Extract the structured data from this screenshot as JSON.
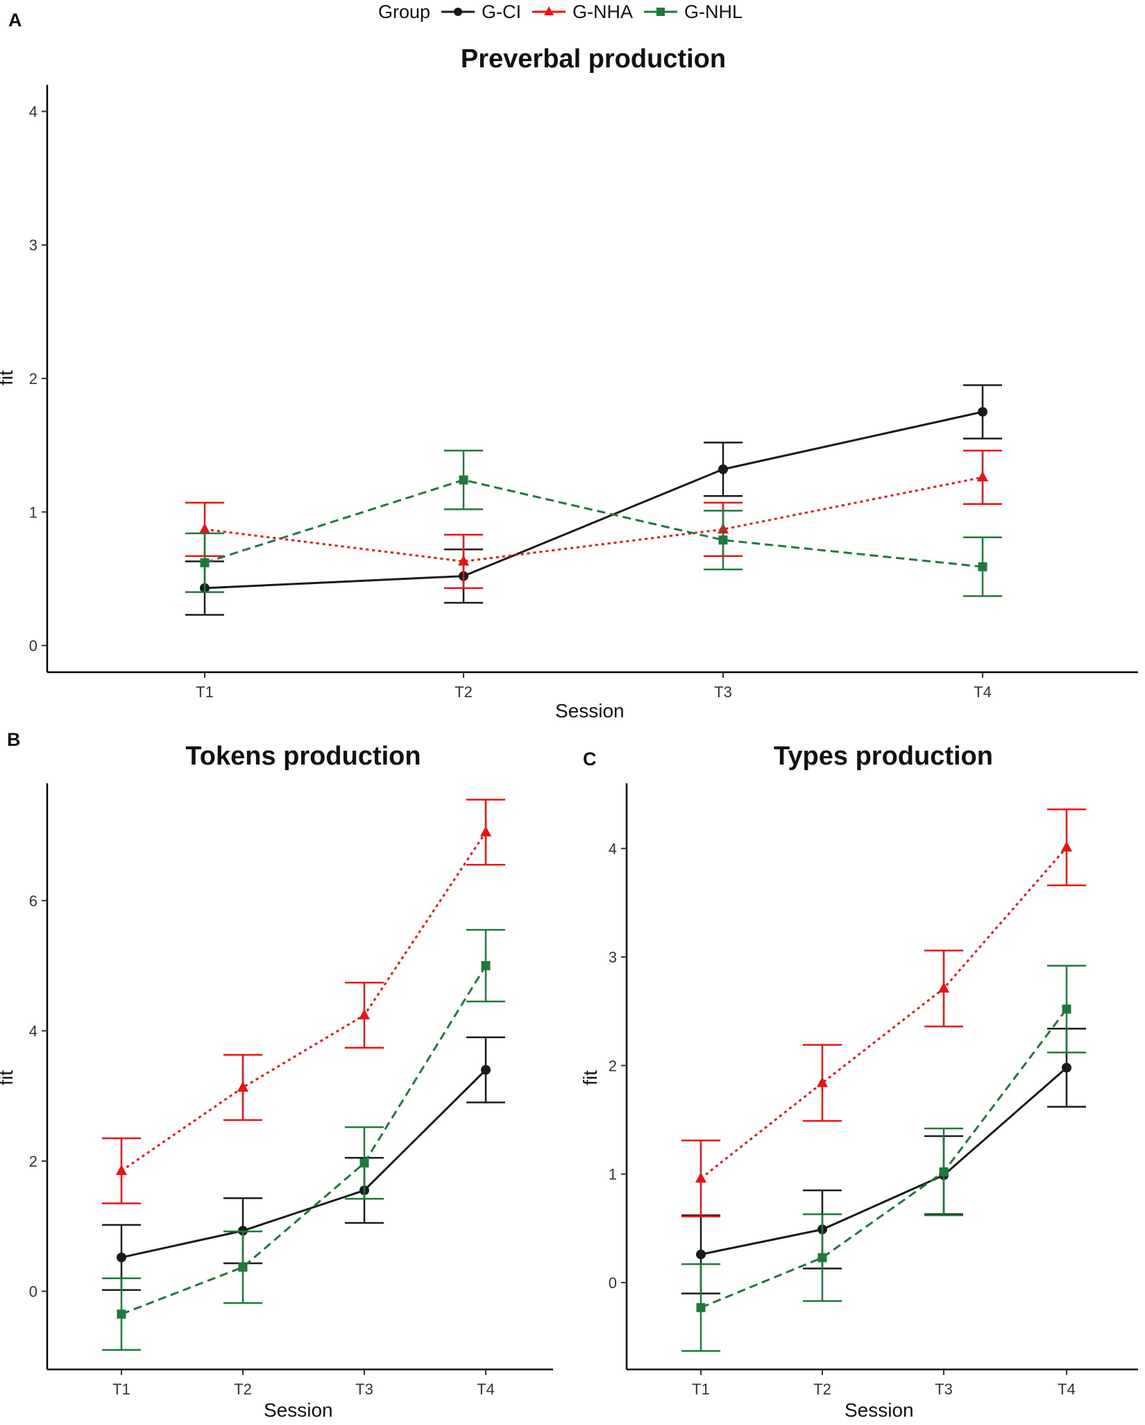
{
  "legend": {
    "title": "Group",
    "items": [
      {
        "name": "G-CI",
        "color": "#1a1a1a",
        "shape": "circle",
        "dash": "solid"
      },
      {
        "name": "G-NHA",
        "color": "#ee1111",
        "shape": "triangle",
        "dash": "dotted"
      },
      {
        "name": "G-NHL",
        "color": "#1e7a3a",
        "shape": "square",
        "dash": "dashed"
      }
    ]
  },
  "chart_data": [
    {
      "panel": "A",
      "type": "line",
      "title": "Preverbal production",
      "xlabel": "Session",
      "ylabel": "fit",
      "categories": [
        "T1",
        "T2",
        "T3",
        "T4"
      ],
      "ylim": [
        -0.2,
        4.2
      ],
      "yticks": [
        0,
        1,
        2,
        3,
        4
      ],
      "series": [
        {
          "name": "G-CI",
          "values": [
            0.43,
            0.52,
            1.32,
            1.75
          ],
          "lower": [
            0.23,
            0.32,
            1.12,
            1.55
          ],
          "upper": [
            0.63,
            0.72,
            1.52,
            1.95
          ]
        },
        {
          "name": "G-NHA",
          "values": [
            0.87,
            0.63,
            0.87,
            1.26
          ],
          "lower": [
            0.67,
            0.43,
            0.67,
            1.06
          ],
          "upper": [
            1.07,
            0.83,
            1.07,
            1.46
          ]
        },
        {
          "name": "G-NHL",
          "values": [
            0.62,
            1.24,
            0.79,
            0.59
          ],
          "lower": [
            0.4,
            1.02,
            0.57,
            0.37
          ],
          "upper": [
            0.84,
            1.46,
            1.01,
            0.81
          ]
        }
      ]
    },
    {
      "panel": "B",
      "type": "line",
      "title": "Tokens production",
      "xlabel": "Session",
      "ylabel": "fit",
      "categories": [
        "T1",
        "T2",
        "T3",
        "T4"
      ],
      "ylim": [
        -1.2,
        7.8
      ],
      "yticks": [
        0,
        2,
        4,
        6
      ],
      "series": [
        {
          "name": "G-CI",
          "values": [
            0.52,
            0.93,
            1.55,
            3.4
          ],
          "lower": [
            0.02,
            0.43,
            1.05,
            2.9
          ],
          "upper": [
            1.02,
            1.43,
            2.05,
            3.9
          ]
        },
        {
          "name": "G-NHA",
          "values": [
            1.85,
            3.13,
            4.24,
            7.05
          ],
          "lower": [
            1.35,
            2.63,
            3.74,
            6.55
          ],
          "upper": [
            2.35,
            3.63,
            4.74,
            7.55
          ]
        },
        {
          "name": "G-NHL",
          "values": [
            -0.35,
            0.37,
            1.97,
            5.0
          ],
          "lower": [
            -0.9,
            -0.18,
            1.42,
            4.45
          ],
          "upper": [
            0.2,
            0.92,
            2.52,
            5.55
          ]
        }
      ]
    },
    {
      "panel": "C",
      "type": "line",
      "title": "Types production",
      "xlabel": "Session",
      "ylabel": "fit",
      "categories": [
        "T1",
        "T2",
        "T3",
        "T4"
      ],
      "ylim": [
        -0.8,
        4.6
      ],
      "yticks": [
        0,
        1,
        2,
        3,
        4
      ],
      "series": [
        {
          "name": "G-CI",
          "values": [
            0.26,
            0.49,
            0.99,
            1.98
          ],
          "lower": [
            -0.1,
            0.13,
            0.63,
            1.62
          ],
          "upper": [
            0.62,
            0.85,
            1.35,
            2.34
          ]
        },
        {
          "name": "G-NHA",
          "values": [
            0.96,
            1.84,
            2.71,
            4.01
          ],
          "lower": [
            0.61,
            1.49,
            2.36,
            3.66
          ],
          "upper": [
            1.31,
            2.19,
            3.06,
            4.36
          ]
        },
        {
          "name": "G-NHL",
          "values": [
            -0.23,
            0.23,
            1.02,
            2.52
          ],
          "lower": [
            -0.63,
            -0.17,
            0.62,
            2.12
          ],
          "upper": [
            0.17,
            0.63,
            1.42,
            2.92
          ]
        }
      ]
    }
  ]
}
